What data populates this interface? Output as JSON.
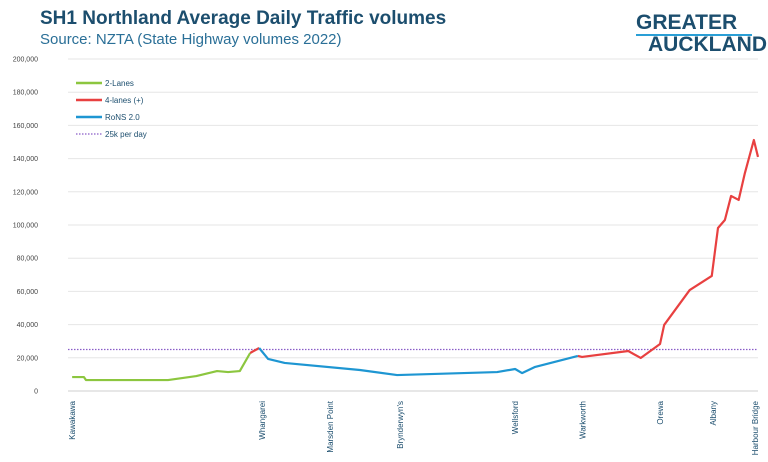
{
  "chart_data": {
    "type": "line",
    "title": "SH1 Northland Average Daily Traffic volumes",
    "subtitle": "Source: NZTA (State Highway volumes 2022)",
    "logo": "GREATER AUCKLAND",
    "ylim": [
      0,
      200000
    ],
    "yticks": [
      "0",
      "20,000",
      "40,000",
      "60,000",
      "80,000",
      "100,000",
      "120,000",
      "140,000",
      "160,000",
      "180,000",
      "200,000"
    ],
    "xlim": [
      0,
      100
    ],
    "grid": true,
    "legend_placement": "top-left",
    "x_labels": [
      {
        "label": "Kawakawa",
        "x": 0.6
      },
      {
        "label": "Whangarei",
        "x": 28.1
      },
      {
        "label": "Marsden Point",
        "x": 38.0
      },
      {
        "label": "Brynderwyn's",
        "x": 48.1
      },
      {
        "label": "Wellsford",
        "x": 64.8
      },
      {
        "label": "Warkworth",
        "x": 74.6
      },
      {
        "label": "Orewa",
        "x": 85.8
      },
      {
        "label": "Albany",
        "x": 93.5
      },
      {
        "label": "Harbour Bridge",
        "x": 99.6
      }
    ],
    "series": [
      {
        "name": "2-Lanes",
        "color": "#8cc63f",
        "points": [
          [
            0.6,
            8400
          ],
          [
            2.3,
            8400
          ],
          [
            2.6,
            6600
          ],
          [
            14.5,
            6600
          ],
          [
            18.6,
            9000
          ],
          [
            21.6,
            12000
          ],
          [
            23.2,
            11400
          ],
          [
            24.9,
            12000
          ],
          [
            26.4,
            22900
          ]
        ]
      },
      {
        "name": "4-lanes (+)",
        "color": "#e84040",
        "points": [
          [
            26.4,
            22900
          ],
          [
            27.7,
            25900
          ]
        ]
      },
      {
        "name": "RoNS 2.0",
        "color": "#1e96d2",
        "points": [
          [
            27.7,
            25900
          ],
          [
            29.0,
            19300
          ],
          [
            31.4,
            16900
          ],
          [
            42.3,
            12650
          ],
          [
            47.7,
            9600
          ],
          [
            62.2,
            11400
          ],
          [
            64.8,
            13250
          ],
          [
            65.8,
            10800
          ],
          [
            67.7,
            14500
          ],
          [
            73.9,
            21100
          ]
        ]
      },
      {
        "name": "4-lanes (+)",
        "color": "#e84040",
        "points": [
          [
            73.9,
            21100
          ],
          [
            74.5,
            20500
          ],
          [
            81.2,
            24100
          ],
          [
            83.0,
            19900
          ],
          [
            85.8,
            28300
          ],
          [
            86.4,
            39800
          ],
          [
            90.1,
            60800
          ],
          [
            93.3,
            69300
          ],
          [
            94.2,
            98200
          ],
          [
            95.2,
            103000
          ],
          [
            96.1,
            117500
          ],
          [
            97.2,
            115100
          ],
          [
            98.1,
            131300
          ],
          [
            99.4,
            151200
          ],
          [
            100,
            141000
          ]
        ]
      }
    ],
    "reference_line": {
      "name": "25k per day",
      "value": 25000,
      "color": "#8a5cc8"
    },
    "legend": [
      {
        "label": "2-Lanes",
        "color": "#8cc63f",
        "style": "solid"
      },
      {
        "label": "4-lanes (+)",
        "color": "#e84040",
        "style": "solid"
      },
      {
        "label": "RoNS 2.0",
        "color": "#1e96d2",
        "style": "solid"
      },
      {
        "label": "25k per day",
        "color": "#8a5cc8",
        "style": "dotted"
      }
    ]
  }
}
